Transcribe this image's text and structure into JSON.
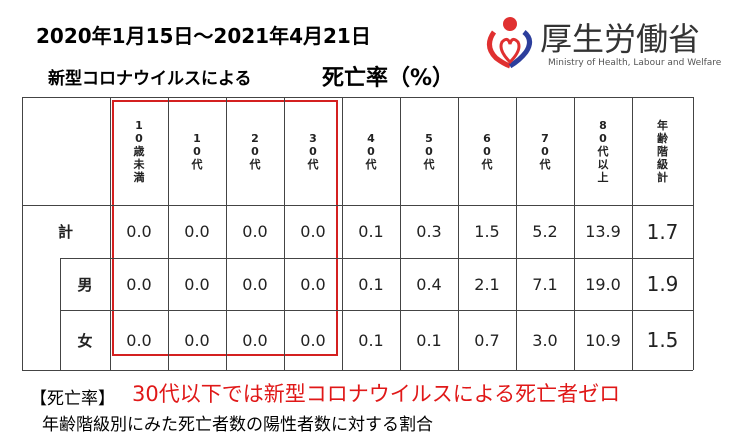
{
  "header": {
    "date": "2020年1月15日～2021年4月21日",
    "subtitle": "新型コロナウイルスによる",
    "subtitle_emphasis": "死亡率（%）"
  },
  "logo": {
    "name": "厚生労働省",
    "english": "Ministry of Health, Labour and Welfare"
  },
  "table": {
    "columns": [
      "10歳未満",
      "10代",
      "20代",
      "30代",
      "40代",
      "50代",
      "60代",
      "70代",
      "80代以上",
      "年齢階級計"
    ],
    "rows": [
      {
        "label": "計",
        "values": [
          "0.0",
          "0.0",
          "0.0",
          "0.0",
          "0.1",
          "0.3",
          "1.5",
          "5.2",
          "13.9",
          "1.7"
        ]
      },
      {
        "label": "男",
        "values": [
          "0.0",
          "0.0",
          "0.0",
          "0.0",
          "0.1",
          "0.4",
          "2.1",
          "7.1",
          "19.0",
          "1.9"
        ]
      },
      {
        "label": "女",
        "values": [
          "0.0",
          "0.0",
          "0.0",
          "0.0",
          "0.1",
          "0.1",
          "0.7",
          "3.0",
          "10.9",
          "1.5"
        ]
      }
    ]
  },
  "footer": {
    "label": "【死亡率】",
    "highlight": "30代以下では新型コロナウイルスによる死亡者ゼロ",
    "note": "年齢階級別にみた死亡者数の陽性者数に対する割合"
  }
}
